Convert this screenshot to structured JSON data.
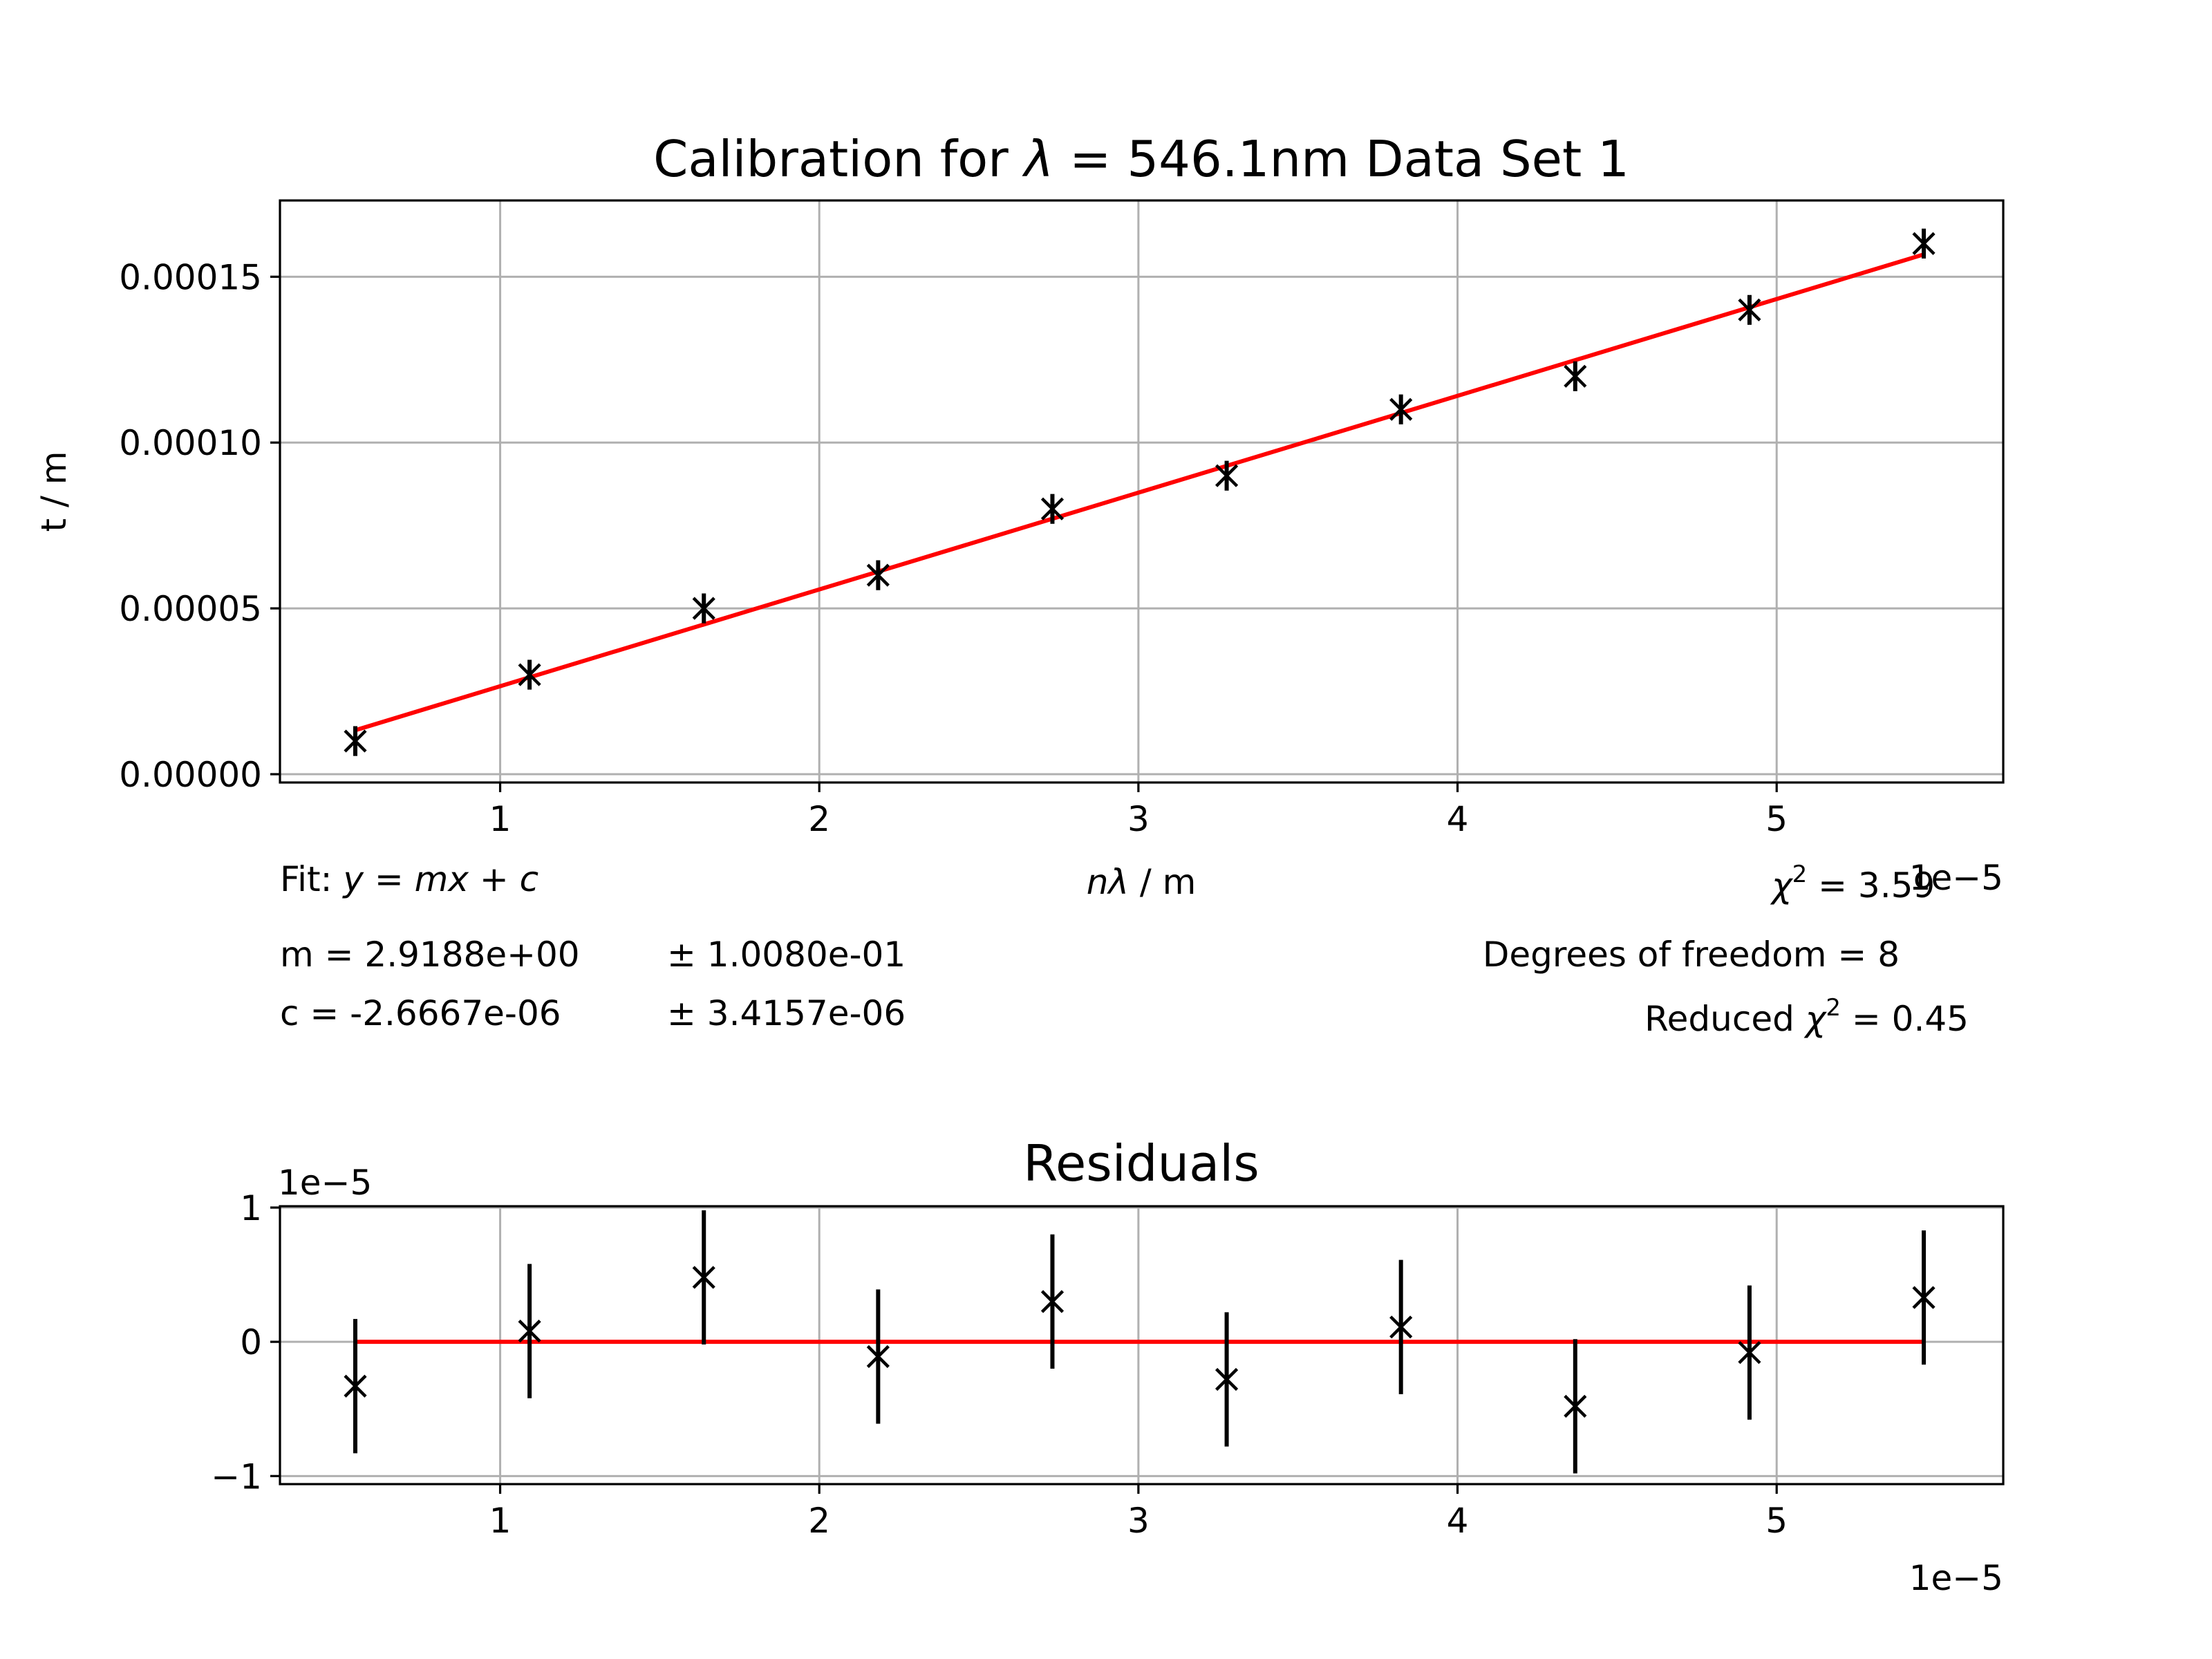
{
  "chart_data": [
    {
      "type": "scatter",
      "title": "Calibration for λ = 546.1nm Data Set 1",
      "xlabel": "nλ / m",
      "ylabel": "t / m",
      "x_offset_label": "1e−5",
      "xlim": [
        3.1e-06,
        5.71e-05
      ],
      "ylim": [
        -2.5e-06,
        0.000173
      ],
      "xticks": [
        "1",
        "2",
        "3",
        "4",
        "5"
      ],
      "xtick_values": [
        1e-05,
        2e-05,
        3e-05,
        4e-05,
        5e-05
      ],
      "yticks": [
        "0.00000",
        "0.00005",
        "0.00010",
        "0.00015"
      ],
      "ytick_values": [
        0,
        5e-05,
        0.0001,
        0.00015
      ],
      "grid": true,
      "series": [
        {
          "marker": "x",
          "color": "#000000",
          "x": [
            5.461e-06,
            1.0922e-05,
            1.6383e-05,
            2.1844e-05,
            2.7305e-05,
            3.2766e-05,
            3.8227e-05,
            4.3688e-05,
            4.9149e-05,
            5.461e-05
          ],
          "y": [
            1e-05,
            3e-05,
            5e-05,
            6e-05,
            8e-05,
            9e-05,
            0.00011,
            0.00012,
            0.00014,
            0.00016
          ],
          "yerr": [
            4.5e-06,
            4.5e-06,
            4.5e-06,
            4.5e-06,
            4.5e-06,
            4.5e-06,
            4.5e-06,
            4.5e-06,
            4.5e-06,
            4.5e-06
          ]
        }
      ],
      "fit_line": {
        "m": 2.9188,
        "c": -2.6667e-06,
        "color": "#ff0000"
      }
    },
    {
      "type": "scatter",
      "title": "Residuals",
      "y_offset_label": "1e−5",
      "x_offset_label": "1e−5",
      "xlim": [
        3.1e-06,
        5.71e-05
      ],
      "ylim": [
        -1.06e-05,
        1.01e-05
      ],
      "xticks": [
        "1",
        "2",
        "3",
        "4",
        "5"
      ],
      "xtick_values": [
        1e-05,
        2e-05,
        3e-05,
        4e-05,
        5e-05
      ],
      "yticks": [
        "−1",
        "0",
        "1"
      ],
      "ytick_values": [
        -1e-05,
        0,
        1e-05
      ],
      "grid": true,
      "series": [
        {
          "marker": "x",
          "color": "#000000",
          "x": [
            5.461e-06,
            1.0922e-05,
            1.6383e-05,
            2.1844e-05,
            2.7305e-05,
            3.2766e-05,
            3.8227e-05,
            4.3688e-05,
            4.9149e-05,
            5.461e-05
          ],
          "y": [
            -3.3e-06,
            8e-07,
            4.8e-06,
            -1.1e-06,
            3e-06,
            -2.8e-06,
            1.1e-06,
            -4.8e-06,
            -8e-07,
            3.3e-06
          ],
          "yerr": [
            5e-06,
            5e-06,
            5e-06,
            5e-06,
            5e-06,
            5e-06,
            5e-06,
            5e-06,
            5e-06,
            5e-06
          ]
        }
      ],
      "zero_line": {
        "color": "#ff0000"
      }
    }
  ],
  "fit_info": {
    "fit_prefix": "Fit: ",
    "fit_equation": "y = mx + c",
    "m_value": "m = 2.9188e+00",
    "m_error": "± 1.0080e-01",
    "c_value": "c = -2.6667e-06",
    "c_error": "± 3.4157e-06",
    "chi2_symbol": "χ",
    "chi2_text": " = 3.59",
    "dof_text": "Degrees of freedom = 8",
    "reduced_prefix": "Reduced ",
    "reduced_symbol": "χ",
    "reduced_text": " = 0.45",
    "superscript": "2"
  }
}
